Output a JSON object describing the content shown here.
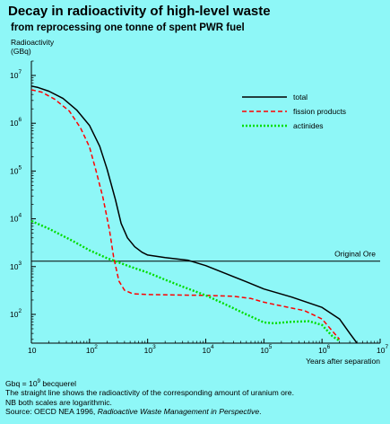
{
  "header": {
    "title": "Decay in radioactivity of high-level waste",
    "subtitle": "from reprocessing one tonne of spent PWR fuel"
  },
  "chart_data": {
    "type": "line",
    "title": "Decay in radioactivity of high-level waste",
    "subtitle": "from reprocessing one tonne of spent PWR fuel",
    "xlabel": "Years after separation",
    "ylabel": "Radioactivity (GBq)",
    "ylabel_lines": [
      "Radioactivity",
      "(GBq)"
    ],
    "x_scale": "log",
    "y_scale": "log",
    "xlim": [
      10,
      10000000
    ],
    "ylim": [
      25,
      20000000
    ],
    "x_ticks": [
      {
        "value": 10,
        "base": "10",
        "exp": ""
      },
      {
        "value": 100,
        "base": "10",
        "exp": "2"
      },
      {
        "value": 1000,
        "base": "10",
        "exp": "3"
      },
      {
        "value": 10000,
        "base": "10",
        "exp": "4"
      },
      {
        "value": 100000,
        "base": "10",
        "exp": "5"
      },
      {
        "value": 1000000,
        "base": "10",
        "exp": "6"
      },
      {
        "value": 10000000,
        "base": "10",
        "exp": "7"
      }
    ],
    "y_ticks": [
      {
        "value": 100,
        "base": "10",
        "exp": "2"
      },
      {
        "value": 1000,
        "base": "10",
        "exp": "3"
      },
      {
        "value": 10000,
        "base": "10",
        "exp": "4"
      },
      {
        "value": 100000,
        "base": "10",
        "exp": "5"
      },
      {
        "value": 1000000,
        "base": "10",
        "exp": "6"
      },
      {
        "value": 10000000,
        "base": "10",
        "exp": "7"
      }
    ],
    "legend_position": "top-right",
    "grid": false,
    "series": [
      {
        "name": "total",
        "color": "#000000",
        "dash": "solid",
        "points": [
          [
            10,
            6000000
          ],
          [
            13,
            5600000
          ],
          [
            20,
            4700000
          ],
          [
            35,
            3300000
          ],
          [
            60,
            1900000
          ],
          [
            100,
            900000
          ],
          [
            150,
            330000
          ],
          [
            200,
            110000
          ],
          [
            280,
            25000
          ],
          [
            350,
            8000
          ],
          [
            450,
            4000
          ],
          [
            600,
            2600
          ],
          [
            800,
            2000
          ],
          [
            1000,
            1750
          ],
          [
            2000,
            1550
          ],
          [
            5000,
            1350
          ],
          [
            10000,
            1050
          ],
          [
            20000,
            750
          ],
          [
            50000,
            480
          ],
          [
            100000,
            340
          ],
          [
            300000,
            230
          ],
          [
            1000000,
            140
          ],
          [
            2000000,
            80
          ],
          [
            3000000,
            40
          ],
          [
            4000000,
            25
          ]
        ]
      },
      {
        "name": "fission products",
        "color": "#ff0000",
        "dash": "dashed",
        "points": [
          [
            10,
            5000000
          ],
          [
            15,
            4500000
          ],
          [
            25,
            3200000
          ],
          [
            45,
            1800000
          ],
          [
            70,
            800000
          ],
          [
            100,
            320000
          ],
          [
            130,
            100000
          ],
          [
            170,
            28000
          ],
          [
            220,
            6000
          ],
          [
            260,
            1600
          ],
          [
            320,
            500
          ],
          [
            400,
            320
          ],
          [
            550,
            270
          ],
          [
            1000,
            260
          ],
          [
            3000,
            255
          ],
          [
            10000,
            250
          ],
          [
            30000,
            240
          ],
          [
            60000,
            215
          ],
          [
            100000,
            180
          ],
          [
            200000,
            150
          ],
          [
            500000,
            120
          ],
          [
            1000000,
            80
          ],
          [
            1500000,
            45
          ],
          [
            2000000,
            30
          ]
        ]
      },
      {
        "name": "actinides",
        "color": "#00dd00",
        "dash": "dotted",
        "points": [
          [
            10,
            9000
          ],
          [
            20,
            6200
          ],
          [
            50,
            3500
          ],
          [
            100,
            2200
          ],
          [
            200,
            1500
          ],
          [
            500,
            1000
          ],
          [
            1000,
            750
          ],
          [
            2000,
            530
          ],
          [
            4000,
            380
          ],
          [
            10000,
            250
          ],
          [
            20000,
            170
          ],
          [
            50000,
            100
          ],
          [
            100000,
            68
          ],
          [
            150000,
            65
          ],
          [
            300000,
            70
          ],
          [
            600000,
            72
          ],
          [
            1000000,
            60
          ],
          [
            1500000,
            35
          ],
          [
            2000000,
            28
          ]
        ]
      }
    ],
    "reference_line": {
      "label": "Original Ore",
      "value": 1300,
      "color": "#000000"
    },
    "annotations": []
  },
  "notes": {
    "gbq_prefix": "Gbq = 10",
    "gbq_exp": "9",
    "gbq_suffix": " becquerel",
    "line2": "The straight line shows the radioactivity of the corresponding amount of uranium ore.",
    "line3": "NB both scales are logarithmic.",
    "source_prefix": "Source: OECD NEA 1996, ",
    "source_title": "Radioactive Waste Management in Perspective",
    "source_suffix": "."
  }
}
